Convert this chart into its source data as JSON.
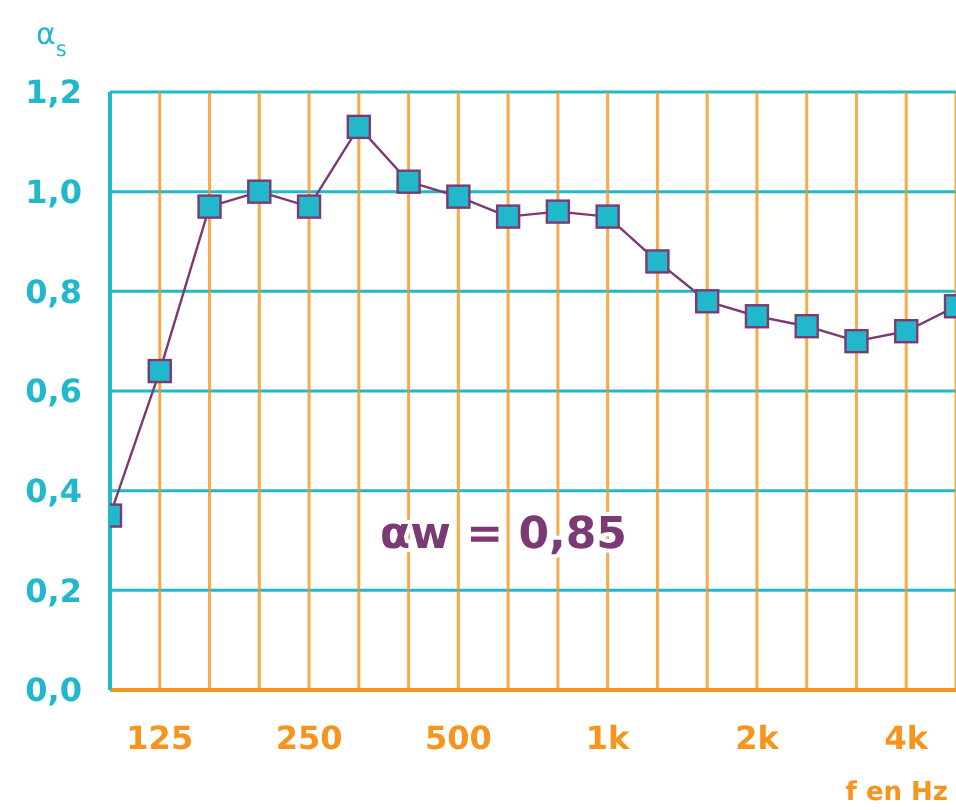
{
  "chart_data": {
    "type": "line",
    "ylabel": "α$_{s}$",
    "xlabel": "f en Hz",
    "categories": [
      null,
      "125",
      null,
      null,
      "250",
      null,
      null,
      "500",
      null,
      null,
      "1k",
      null,
      null,
      "2k",
      null,
      null,
      "4k",
      null
    ],
    "series": [
      {
        "color": "#7b3a73",
        "values": [
          0.35,
          0.64,
          0.97,
          1.0,
          0.97,
          1.13,
          1.02,
          0.99,
          0.95,
          0.96,
          0.95,
          0.86,
          0.78,
          0.75,
          0.73,
          0.7,
          0.72,
          0.77
        ]
      }
    ],
    "ylim": [
      0,
      1.2
    ],
    "yticks": [
      {
        "value": 0,
        "label": "0,0"
      },
      {
        "value": 0.2,
        "label": "0,2"
      },
      {
        "value": 0.4,
        "label": "0,4"
      },
      {
        "value": 0.6,
        "label": "0,6"
      },
      {
        "value": 0.8,
        "label": "0,8"
      },
      {
        "value": 1,
        "label": "1,0"
      },
      {
        "value": 1.2,
        "label": "1,2"
      }
    ],
    "grid": true,
    "marker": "square",
    "line_style": "solid",
    "annotations": [
      "αw = 0,85"
    ]
  }
}
